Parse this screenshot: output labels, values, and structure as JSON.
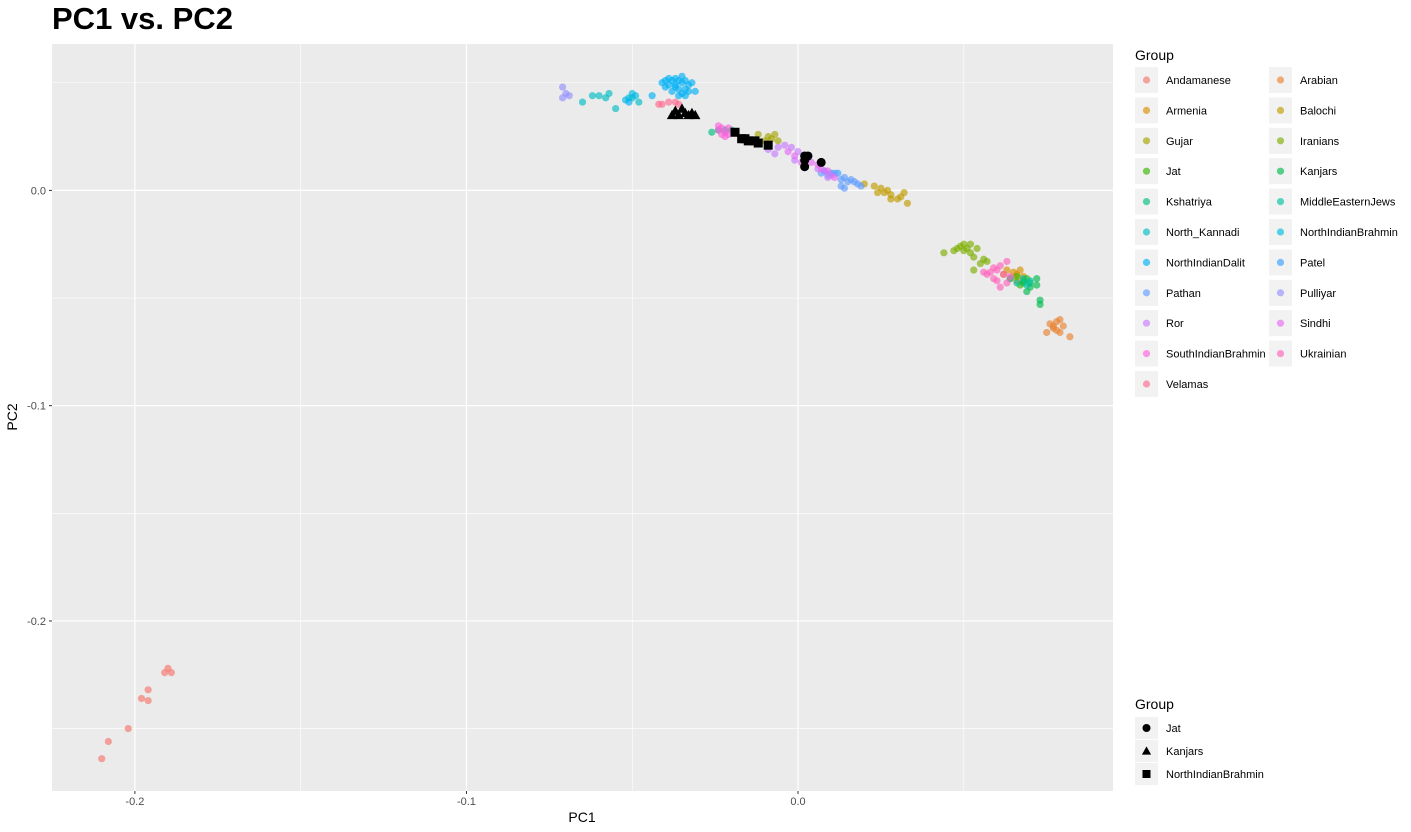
{
  "chart_data": {
    "type": "scatter",
    "title": "PC1 vs. PC2",
    "xlabel": "PC1",
    "ylabel": "PC2",
    "xlim": [
      -0.225,
      0.095
    ],
    "ylim": [
      -0.279,
      0.068
    ],
    "x_ticks": [
      -0.2,
      -0.1,
      0.0
    ],
    "x_tick_labels": [
      "-0.2",
      "-0.1",
      "0.0"
    ],
    "y_ticks": [
      0.0,
      -0.1,
      -0.2
    ],
    "y_tick_labels": [
      "0.0",
      "-0.1",
      "-0.2"
    ],
    "grid": true,
    "panel_background": "#ebebeb",
    "legend_position": "right",
    "color_legend": {
      "title": "Group",
      "entries": [
        {
          "label": "Andamanese",
          "color": "#F8766D"
        },
        {
          "label": "Arabian",
          "color": "#EA8331"
        },
        {
          "label": "Armenia",
          "color": "#D89000"
        },
        {
          "label": "Balochi",
          "color": "#C09B00"
        },
        {
          "label": "Gujar",
          "color": "#A3A500"
        },
        {
          "label": "Iranians",
          "color": "#7CAE00"
        },
        {
          "label": "Jat",
          "color": "#39B600"
        },
        {
          "label": "Kanjars",
          "color": "#00BB4E"
        },
        {
          "label": "Kshatriya",
          "color": "#00BF7D"
        },
        {
          "label": "MiddleEasternJews",
          "color": "#00C1A3"
        },
        {
          "label": "North_Kannadi",
          "color": "#00BFC4"
        },
        {
          "label": "NorthIndianBrahmin",
          "color": "#00BAE0"
        },
        {
          "label": "NorthIndianDalit",
          "color": "#00B0F6"
        },
        {
          "label": "Patel",
          "color": "#35A2FF"
        },
        {
          "label": "Pathan",
          "color": "#619CFF"
        },
        {
          "label": "Pulliyar",
          "color": "#9590FF"
        },
        {
          "label": "Ror",
          "color": "#C77CFF"
        },
        {
          "label": "Sindhi",
          "color": "#E76BF3"
        },
        {
          "label": "SouthIndianBrahmin",
          "color": "#FA62DB"
        },
        {
          "label": "Ukrainian",
          "color": "#FF62BC"
        },
        {
          "label": "Velamas",
          "color": "#FF6C91"
        }
      ]
    },
    "shape_legend": {
      "title": "Group",
      "entries": [
        {
          "label": "Jat",
          "shape": "circle"
        },
        {
          "label": "Kanjars",
          "shape": "triangle"
        },
        {
          "label": "NorthIndianBrahmin",
          "shape": "square"
        }
      ]
    },
    "series": [
      {
        "name": "Andamanese",
        "color": "#F8766D",
        "points": [
          [
            -0.21,
            -0.264
          ],
          [
            -0.208,
            -0.256
          ],
          [
            -0.202,
            -0.25
          ],
          [
            -0.198,
            -0.236
          ],
          [
            -0.196,
            -0.237
          ],
          [
            -0.196,
            -0.232
          ],
          [
            -0.19,
            -0.222
          ],
          [
            -0.189,
            -0.224
          ],
          [
            -0.191,
            -0.224
          ]
        ]
      },
      {
        "name": "Arabian",
        "color": "#EA8331",
        "points": [
          [
            0.076,
            -0.062
          ],
          [
            0.077,
            -0.064
          ],
          [
            0.078,
            -0.065
          ],
          [
            0.078,
            -0.061
          ],
          [
            0.079,
            -0.066
          ],
          [
            0.08,
            -0.063
          ],
          [
            0.082,
            -0.068
          ],
          [
            0.075,
            -0.066
          ],
          [
            0.079,
            -0.06
          ],
          [
            0.077,
            -0.063
          ]
        ]
      },
      {
        "name": "Armenia",
        "color": "#D89000",
        "points": [
          [
            0.063,
            -0.037
          ],
          [
            0.065,
            -0.038
          ],
          [
            0.066,
            -0.039
          ],
          [
            0.064,
            -0.041
          ],
          [
            0.067,
            -0.037
          ],
          [
            0.068,
            -0.04
          ],
          [
            0.062,
            -0.039
          ],
          [
            0.066,
            -0.042
          ]
        ]
      },
      {
        "name": "Balochi",
        "color": "#C09B00",
        "points": [
          [
            0.02,
            0.003
          ],
          [
            0.023,
            0.002
          ],
          [
            0.025,
            0.001
          ],
          [
            0.027,
            0.0
          ],
          [
            0.028,
            -0.002
          ],
          [
            0.026,
            -0.001
          ],
          [
            0.03,
            -0.004
          ],
          [
            0.031,
            -0.003
          ],
          [
            0.032,
            -0.001
          ],
          [
            0.033,
            -0.006
          ],
          [
            0.028,
            -0.004
          ],
          [
            0.024,
            -0.001
          ]
        ]
      },
      {
        "name": "Gujar",
        "color": "#A3A500",
        "points": [
          [
            -0.012,
            0.026
          ],
          [
            -0.009,
            0.025
          ],
          [
            -0.008,
            0.024
          ],
          [
            -0.007,
            0.026
          ],
          [
            -0.01,
            0.023
          ],
          [
            -0.006,
            0.023
          ]
        ]
      },
      {
        "name": "Iranians",
        "color": "#7CAE00",
        "points": [
          [
            0.044,
            -0.029
          ],
          [
            0.047,
            -0.028
          ],
          [
            0.049,
            -0.026
          ],
          [
            0.05,
            -0.028
          ],
          [
            0.051,
            -0.027
          ],
          [
            0.052,
            -0.029
          ],
          [
            0.053,
            -0.031
          ],
          [
            0.055,
            -0.034
          ],
          [
            0.056,
            -0.032
          ],
          [
            0.057,
            -0.033
          ],
          [
            0.053,
            -0.037
          ],
          [
            0.054,
            -0.027
          ],
          [
            0.05,
            -0.025
          ],
          [
            0.048,
            -0.027
          ],
          [
            0.052,
            -0.025
          ]
        ]
      },
      {
        "name": "Jat",
        "color": "#39B600",
        "points": [
          [
            0.066,
            -0.04
          ],
          [
            0.068,
            -0.042
          ],
          [
            0.067,
            -0.044
          ],
          [
            0.069,
            -0.041
          ]
        ]
      },
      {
        "name": "Kanjars",
        "color": "#00BB4E",
        "points": [
          [
            0.068,
            -0.043
          ],
          [
            0.07,
            -0.043
          ],
          [
            0.07,
            -0.045
          ],
          [
            0.072,
            -0.044
          ],
          [
            0.072,
            -0.041
          ],
          [
            0.073,
            -0.051
          ],
          [
            0.073,
            -0.053
          ],
          [
            0.069,
            -0.047
          ]
        ]
      },
      {
        "name": "Kshatriya",
        "color": "#00BF7D",
        "points": [
          [
            -0.026,
            0.027
          ],
          [
            -0.024,
            0.028
          ],
          [
            -0.022,
            0.028
          ],
          [
            -0.02,
            0.028
          ]
        ]
      },
      {
        "name": "MiddleEasternJews",
        "color": "#00C1A3",
        "points": [
          [
            0.064,
            -0.041
          ],
          [
            0.066,
            -0.043
          ],
          [
            0.068,
            -0.041
          ],
          [
            0.069,
            -0.044
          ],
          [
            0.07,
            -0.042
          ]
        ]
      },
      {
        "name": "North_Kannadi",
        "color": "#00BFC4",
        "points": [
          [
            -0.065,
            0.041
          ],
          [
            -0.062,
            0.044
          ],
          [
            -0.06,
            0.044
          ],
          [
            -0.058,
            0.043
          ],
          [
            -0.057,
            0.045
          ],
          [
            -0.055,
            0.038
          ],
          [
            -0.05,
            0.043
          ],
          [
            -0.048,
            0.041
          ]
        ]
      },
      {
        "name": "NorthIndianBrahmin",
        "color": "#00BAE0",
        "points": [
          [
            -0.051,
            0.043
          ],
          [
            -0.05,
            0.045
          ],
          [
            -0.052,
            0.042
          ],
          [
            -0.049,
            0.044
          ]
        ]
      },
      {
        "name": "NorthIndianDalit",
        "color": "#00B0F6",
        "points": [
          [
            -0.04,
            0.051
          ],
          [
            -0.039,
            0.052
          ],
          [
            -0.038,
            0.051
          ],
          [
            -0.037,
            0.052
          ],
          [
            -0.036,
            0.051
          ],
          [
            -0.035,
            0.05
          ],
          [
            -0.034,
            0.051
          ],
          [
            -0.033,
            0.049
          ],
          [
            -0.037,
            0.049
          ],
          [
            -0.036,
            0.047
          ],
          [
            -0.034,
            0.047
          ],
          [
            -0.038,
            0.046
          ],
          [
            -0.035,
            0.045
          ],
          [
            -0.033,
            0.046
          ],
          [
            -0.031,
            0.046
          ],
          [
            -0.039,
            0.049
          ],
          [
            -0.032,
            0.05
          ],
          [
            -0.036,
            0.044
          ],
          [
            -0.041,
            0.05
          ],
          [
            -0.044,
            0.044
          ],
          [
            -0.051,
            0.041
          ],
          [
            -0.035,
            0.053
          ],
          [
            -0.037,
            0.048
          ],
          [
            -0.034,
            0.044
          ],
          [
            -0.04,
            0.048
          ]
        ]
      },
      {
        "name": "Patel",
        "color": "#35A2FF",
        "points": [
          [
            0.008,
            0.009
          ],
          [
            0.01,
            0.008
          ],
          [
            0.012,
            0.008
          ]
        ]
      },
      {
        "name": "Pathan",
        "color": "#619CFF",
        "points": [
          [
            0.007,
            0.008
          ],
          [
            0.009,
            0.007
          ],
          [
            0.011,
            0.008
          ],
          [
            0.013,
            0.005
          ],
          [
            0.014,
            0.006
          ],
          [
            0.015,
            0.004
          ],
          [
            0.016,
            0.005
          ],
          [
            0.013,
            0.002
          ],
          [
            0.014,
            0.001
          ],
          [
            0.017,
            0.004
          ],
          [
            0.019,
            0.002
          ],
          [
            0.018,
            0.003
          ]
        ]
      },
      {
        "name": "Pulliyar",
        "color": "#9590FF",
        "points": [
          [
            -0.071,
            0.048
          ],
          [
            -0.07,
            0.045
          ],
          [
            -0.071,
            0.043
          ],
          [
            -0.069,
            0.044
          ]
        ]
      },
      {
        "name": "Ror",
        "color": "#C77CFF",
        "points": [
          [
            -0.009,
            0.019
          ],
          [
            -0.006,
            0.02
          ],
          [
            -0.004,
            0.021
          ],
          [
            -0.002,
            0.02
          ],
          [
            0.0,
            0.018
          ],
          [
            -0.001,
            0.014
          ],
          [
            0.006,
            0.01
          ],
          [
            0.008,
            0.009
          ],
          [
            0.01,
            0.007
          ],
          [
            0.009,
            0.006
          ],
          [
            -0.007,
            0.017
          ]
        ]
      },
      {
        "name": "Sindhi",
        "color": "#E76BF3",
        "points": [
          [
            -0.003,
            0.018
          ],
          [
            -0.001,
            0.016
          ],
          [
            0.002,
            0.015
          ],
          [
            0.004,
            0.013
          ],
          [
            0.006,
            0.012
          ],
          [
            0.009,
            0.009
          ],
          [
            0.011,
            0.006
          ],
          [
            0.007,
            0.01
          ],
          [
            0.001,
            0.013
          ]
        ]
      },
      {
        "name": "SouthIndianBrahmin",
        "color": "#FA62DB",
        "points": [
          [
            -0.024,
            0.028
          ],
          [
            -0.023,
            0.026
          ],
          [
            -0.022,
            0.027
          ],
          [
            -0.021,
            0.026
          ],
          [
            -0.023,
            0.029
          ],
          [
            -0.022,
            0.025
          ],
          [
            -0.024,
            0.03
          ],
          [
            -0.021,
            0.029
          ]
        ]
      },
      {
        "name": "Ukrainian",
        "color": "#FF62BC",
        "points": [
          [
            0.056,
            -0.038
          ],
          [
            0.058,
            -0.038
          ],
          [
            0.059,
            -0.036
          ],
          [
            0.06,
            -0.037
          ],
          [
            0.061,
            -0.035
          ],
          [
            0.062,
            -0.039
          ],
          [
            0.063,
            -0.043
          ],
          [
            0.061,
            -0.045
          ],
          [
            0.059,
            -0.041
          ],
          [
            0.064,
            -0.04
          ],
          [
            0.063,
            -0.033
          ],
          [
            0.06,
            -0.042
          ],
          [
            0.057,
            -0.039
          ]
        ]
      },
      {
        "name": "Velamas",
        "color": "#FF6C91",
        "points": [
          [
            -0.042,
            0.04
          ],
          [
            -0.041,
            0.04
          ],
          [
            -0.039,
            0.041
          ],
          [
            -0.037,
            0.041
          ],
          [
            -0.036,
            0.04
          ]
        ]
      }
    ],
    "shape_series": [
      {
        "name": "Jat",
        "shape": "circle",
        "points": [
          [
            0.002,
            0.016
          ],
          [
            0.003,
            0.016
          ],
          [
            0.002,
            0.014
          ],
          [
            0.002,
            0.011
          ],
          [
            0.007,
            0.013
          ]
        ]
      },
      {
        "name": "Kanjars",
        "shape": "triangle",
        "points": [
          [
            -0.038,
            0.035
          ],
          [
            -0.037,
            0.037
          ],
          [
            -0.036,
            0.035
          ],
          [
            -0.035,
            0.038
          ],
          [
            -0.034,
            0.036
          ],
          [
            -0.033,
            0.035
          ],
          [
            -0.032,
            0.036
          ],
          [
            -0.031,
            0.035
          ]
        ]
      },
      {
        "name": "NorthIndianBrahmin",
        "shape": "square",
        "points": [
          [
            -0.019,
            0.027
          ],
          [
            -0.017,
            0.024
          ],
          [
            -0.016,
            0.024
          ],
          [
            -0.015,
            0.023
          ],
          [
            -0.013,
            0.023
          ],
          [
            -0.012,
            0.022
          ],
          [
            -0.009,
            0.021
          ]
        ]
      }
    ]
  }
}
